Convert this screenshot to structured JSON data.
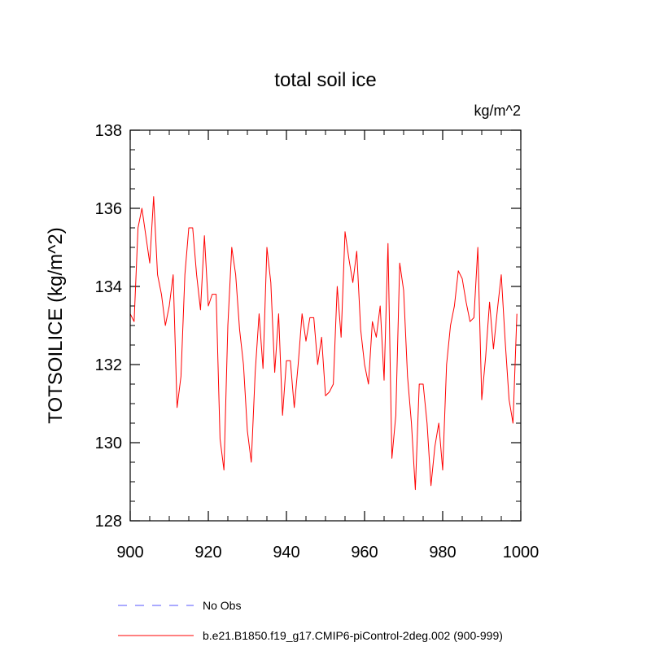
{
  "chart_data": {
    "type": "line",
    "title": "total soil ice",
    "units_label": "kg/m^2",
    "ylabel": "TOTSOILICE  (kg/m^2)",
    "xlabel": "",
    "xlim": [
      900,
      1000
    ],
    "ylim": [
      128,
      138
    ],
    "x_ticks": [
      900,
      920,
      940,
      960,
      980,
      1000
    ],
    "y_ticks": [
      128,
      130,
      132,
      134,
      136,
      138
    ],
    "x_tick_labels": [
      "900",
      "920",
      "940",
      "960",
      "980",
      "1000"
    ],
    "y_tick_labels": [
      "128",
      "130",
      "132",
      "134",
      "136",
      "138"
    ],
    "series": [
      {
        "name": "b.e21.B1850.f19_g17.CMIP6-piControl-2deg.002 (900-999)",
        "color": "#ff0000",
        "style": "solid",
        "x_start": 900,
        "x_step": 1,
        "values": [
          133.3,
          133.1,
          135.5,
          136.0,
          135.3,
          134.6,
          136.3,
          134.3,
          133.8,
          133.0,
          133.5,
          134.3,
          130.9,
          131.7,
          134.3,
          135.5,
          135.5,
          134.3,
          133.4,
          135.3,
          133.5,
          133.8,
          133.8,
          130.1,
          129.3,
          133.0,
          135.0,
          134.3,
          132.9,
          132.0,
          130.3,
          129.5,
          131.8,
          133.3,
          131.9,
          135.0,
          134.1,
          131.8,
          133.3,
          130.7,
          132.1,
          132.1,
          130.9,
          132.0,
          133.3,
          132.6,
          133.2,
          133.2,
          132.0,
          132.7,
          131.2,
          131.3,
          131.5,
          134.0,
          132.7,
          135.4,
          134.7,
          134.1,
          134.9,
          132.9,
          132.0,
          131.5,
          133.1,
          132.7,
          133.5,
          131.6,
          135.1,
          129.6,
          130.7,
          134.6,
          133.9,
          131.7,
          130.5,
          128.8,
          131.5,
          131.5,
          130.5,
          128.9,
          129.9,
          130.5,
          129.3,
          132.0,
          133.0,
          133.5,
          134.4,
          134.2,
          133.6,
          133.1,
          133.2,
          135.0,
          131.1,
          132.2,
          133.6,
          132.4,
          133.4,
          134.3,
          132.6,
          131.1,
          130.5,
          133.3
        ]
      }
    ],
    "legend": {
      "placement": "bottom",
      "entries": [
        {
          "label": "No Obs",
          "color": "#5555ff",
          "style": "dashed"
        },
        {
          "label": "b.e21.B1850.f19_g17.CMIP6-piControl-2deg.002 (900-999)",
          "color": "#ff0000",
          "style": "solid"
        }
      ]
    },
    "grid": false
  }
}
